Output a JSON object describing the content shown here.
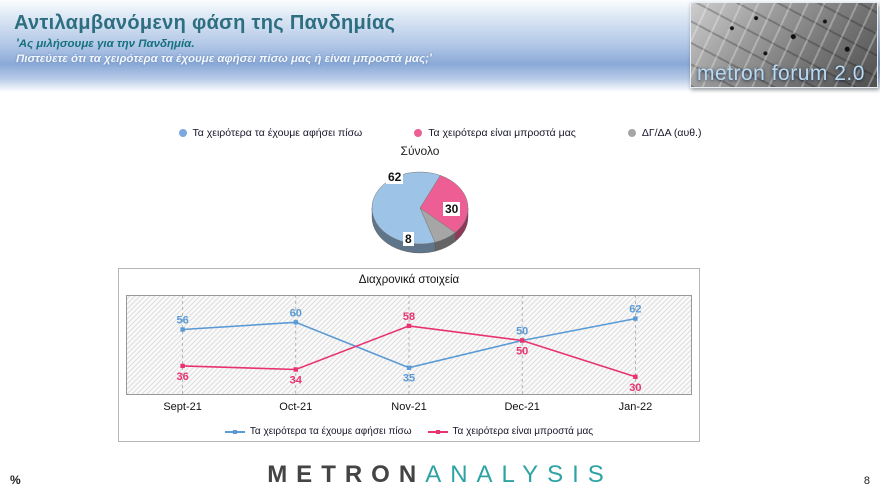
{
  "header": {
    "title": "Αντιλαμβανόμενη φάση της Πανδημίας",
    "subtitle1": "'Ας μιλήσουμε για την Πανδημία.",
    "subtitle2": "Πιστεύετε ότι τα χειρότερα τα έχουμε αφήσει πίσω μας ή είναι μπροστά μας;'",
    "logo_text": "metron forum 2.0"
  },
  "legend": {
    "items": [
      {
        "label": "Τα χειρότερα τα έχουμε αφήσει πίσω",
        "color": "#7da7e0"
      },
      {
        "label": "Τα χειρότερα είναι μπροστά μας",
        "color": "#ed5f94"
      },
      {
        "label": "ΔΓ/ΔΑ (αυθ.)",
        "color": "#a6a6a6"
      }
    ]
  },
  "chart_data": [
    {
      "type": "pie",
      "title": "Σύνολο",
      "categories": [
        "Τα χειρότερα τα έχουμε αφήσει πίσω",
        "Τα χειρότερα είναι μπροστά μας",
        "ΔΓ/ΔΑ (αυθ.)"
      ],
      "values": [
        62,
        30,
        8
      ],
      "labels": [
        "62",
        "30",
        "8"
      ],
      "colors": [
        "#9dc3e6",
        "#ed5f94",
        "#a6a6a6"
      ],
      "start_angle_deg": 25,
      "draw_order": [
        1,
        2,
        0
      ],
      "style": "3d"
    },
    {
      "type": "line",
      "title": "Διαχρονικά στοιχεία",
      "categories": [
        "Sept-21",
        "Oct-21",
        "Nov-21",
        "Dec-21",
        "Jan-22"
      ],
      "series": [
        {
          "name": "Τα χειρότερα τα έχουμε αφήσει πίσω",
          "color": "#5b9bd5",
          "values": [
            56,
            60,
            35,
            50,
            62
          ]
        },
        {
          "name": "Τα χειρότερα είναι μπροστά μας",
          "color": "#e8336f",
          "values": [
            36,
            34,
            58,
            50,
            30
          ]
        }
      ],
      "ylim": [
        20,
        75
      ],
      "grid": "vertical-dashed",
      "background": "diagonal-hatch",
      "legend_position": "bottom"
    }
  ],
  "footer": {
    "percent_label": "%",
    "page_number": "8",
    "brand": {
      "part1": "METRON",
      "part2": "ANALYSIS"
    }
  }
}
